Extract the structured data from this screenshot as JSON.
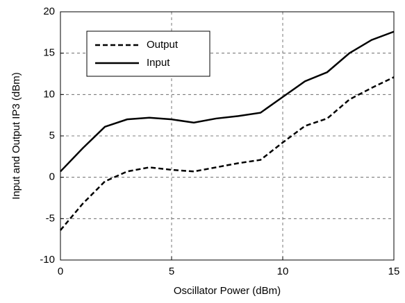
{
  "chart_data": {
    "type": "line",
    "xlabel": "Oscillator Power (dBm)",
    "ylabel": "Input and Output IP3 (dBm)",
    "x": [
      0,
      1,
      2,
      3,
      4,
      5,
      6,
      7,
      8,
      9,
      10,
      11,
      12,
      13,
      14,
      15
    ],
    "series": [
      {
        "name": "Output",
        "color": "#000000",
        "linestyle": "dashed",
        "values": [
          -6.4,
          -3.2,
          -0.5,
          0.7,
          1.2,
          0.9,
          0.7,
          1.2,
          1.7,
          2.1,
          4.2,
          6.2,
          7.1,
          9.4,
          10.8,
          12.1
        ]
      },
      {
        "name": "Input",
        "color": "#000000",
        "linestyle": "solid",
        "values": [
          0.7,
          3.5,
          6.1,
          7.0,
          7.2,
          7.0,
          6.6,
          7.1,
          7.4,
          7.8,
          9.7,
          11.6,
          12.7,
          15.0,
          16.6,
          17.6
        ]
      }
    ],
    "xlim": [
      0,
      15
    ],
    "xticks": [
      0,
      5,
      10,
      15
    ],
    "ylim": [
      -10,
      20
    ],
    "yticks": [
      -10,
      -5,
      0,
      5,
      10,
      15,
      20
    ],
    "grid": true,
    "legend": "upper left"
  }
}
